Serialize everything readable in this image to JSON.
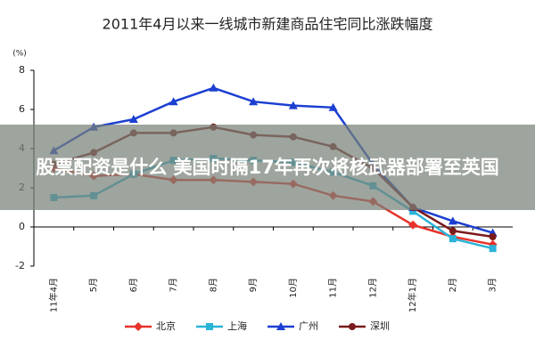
{
  "chart_data": {
    "type": "line",
    "title": "2011年4月以来一线城市新建商品住宅同比涨跌幅度",
    "y_unit": "(%)",
    "categories": [
      "11年4月",
      "5月",
      "6月",
      "7月",
      "8月",
      "9月",
      "10月",
      "11月",
      "12月",
      "12年1月",
      "2月",
      "3月"
    ],
    "series": [
      {
        "name": "北京",
        "color": "#e8312a",
        "marker": "diamond",
        "values": [
          3.0,
          2.6,
          2.7,
          2.4,
          2.4,
          2.3,
          2.2,
          1.6,
          1.3,
          0.1,
          -0.5,
          -0.9
        ]
      },
      {
        "name": "上海",
        "color": "#2bb3d8",
        "marker": "square",
        "values": [
          1.5,
          1.6,
          2.7,
          3.4,
          3.5,
          3.4,
          3.3,
          2.8,
          2.1,
          0.8,
          -0.6,
          -1.1
        ]
      },
      {
        "name": "广州",
        "color": "#1c3fd1",
        "marker": "triangle",
        "values": [
          3.9,
          5.1,
          5.5,
          6.4,
          7.1,
          6.4,
          6.2,
          6.1,
          3.2,
          1.0,
          0.3,
          -0.3
        ]
      },
      {
        "name": "深圳",
        "color": "#7a1a1a",
        "marker": "circle",
        "values": [
          3.2,
          3.8,
          4.8,
          4.8,
          5.1,
          4.7,
          4.6,
          4.1,
          3.0,
          1.0,
          -0.2,
          -0.5
        ]
      }
    ],
    "ylim": [
      -2,
      8
    ],
    "yticks": [
      -2,
      0,
      2,
      4,
      6,
      8
    ],
    "legend": "bottom",
    "overlay_text": "股票配资是什么 美国时隔17年再次将核武器部署至英国"
  }
}
